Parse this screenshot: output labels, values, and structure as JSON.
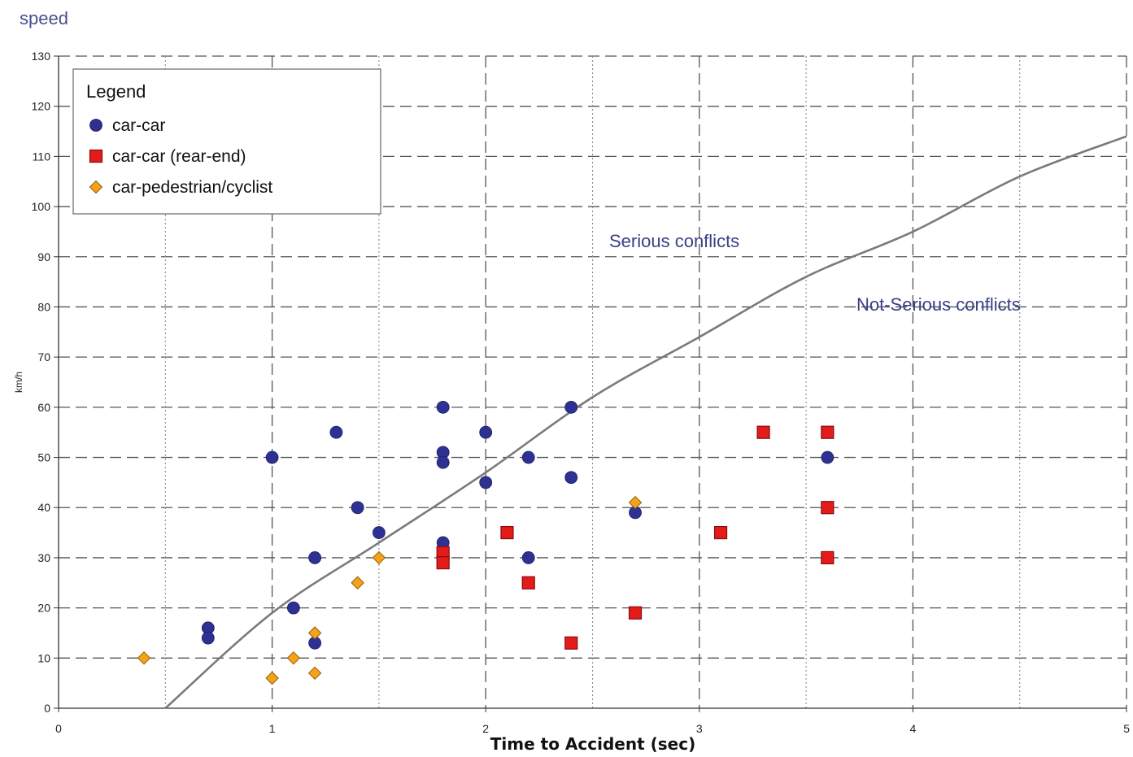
{
  "chart_data": {
    "type": "scatter",
    "title": "speed",
    "xlabel": "Time to Accident (sec)",
    "ylabel": "km/h",
    "xlim": [
      0,
      5
    ],
    "ylim": [
      0,
      130
    ],
    "x_ticks": [
      0,
      1,
      2,
      3,
      4,
      5
    ],
    "y_ticks": [
      0,
      10,
      20,
      30,
      40,
      50,
      60,
      70,
      80,
      90,
      100,
      110,
      120,
      130
    ],
    "grid": true,
    "legend": {
      "title": "Legend",
      "placement": "top-left"
    },
    "annotations": [
      "Serious conflicts",
      "Not-Serious conflicts"
    ],
    "boundary_curve": [
      {
        "x": 0.5,
        "y": 0
      },
      {
        "x": 1.0,
        "y": 19
      },
      {
        "x": 1.5,
        "y": 33
      },
      {
        "x": 2.0,
        "y": 47
      },
      {
        "x": 2.5,
        "y": 62
      },
      {
        "x": 3.0,
        "y": 74
      },
      {
        "x": 3.5,
        "y": 86
      },
      {
        "x": 4.0,
        "y": 95
      },
      {
        "x": 4.5,
        "y": 106
      },
      {
        "x": 5.0,
        "y": 114
      }
    ],
    "series": [
      {
        "name": "car-car",
        "marker": "circle",
        "color": "#2e3192",
        "points": [
          {
            "x": 0.7,
            "y": 16
          },
          {
            "x": 0.7,
            "y": 14
          },
          {
            "x": 1.0,
            "y": 50
          },
          {
            "x": 1.1,
            "y": 20
          },
          {
            "x": 1.2,
            "y": 30
          },
          {
            "x": 1.2,
            "y": 13
          },
          {
            "x": 1.3,
            "y": 55
          },
          {
            "x": 1.4,
            "y": 40
          },
          {
            "x": 1.5,
            "y": 35
          },
          {
            "x": 1.8,
            "y": 60
          },
          {
            "x": 1.8,
            "y": 51
          },
          {
            "x": 1.8,
            "y": 49
          },
          {
            "x": 1.8,
            "y": 33
          },
          {
            "x": 2.0,
            "y": 55
          },
          {
            "x": 2.0,
            "y": 45
          },
          {
            "x": 2.2,
            "y": 50
          },
          {
            "x": 2.2,
            "y": 30
          },
          {
            "x": 2.4,
            "y": 60
          },
          {
            "x": 2.4,
            "y": 46
          },
          {
            "x": 2.7,
            "y": 39
          },
          {
            "x": 3.6,
            "y": 50
          }
        ]
      },
      {
        "name": "car-car (rear-end)",
        "marker": "square",
        "color": "#e31b1b",
        "points": [
          {
            "x": 1.8,
            "y": 31
          },
          {
            "x": 1.8,
            "y": 29
          },
          {
            "x": 2.1,
            "y": 35
          },
          {
            "x": 2.2,
            "y": 25
          },
          {
            "x": 2.4,
            "y": 13
          },
          {
            "x": 2.7,
            "y": 19
          },
          {
            "x": 3.1,
            "y": 35
          },
          {
            "x": 3.3,
            "y": 55
          },
          {
            "x": 3.6,
            "y": 55
          },
          {
            "x": 3.6,
            "y": 40
          },
          {
            "x": 3.6,
            "y": 30
          }
        ]
      },
      {
        "name": "car-pedestrian/cyclist",
        "marker": "diamond",
        "color": "#f3a21b",
        "points": [
          {
            "x": 0.4,
            "y": 10
          },
          {
            "x": 1.0,
            "y": 6
          },
          {
            "x": 1.1,
            "y": 10
          },
          {
            "x": 1.2,
            "y": 15
          },
          {
            "x": 1.2,
            "y": 7
          },
          {
            "x": 1.4,
            "y": 25
          },
          {
            "x": 1.5,
            "y": 30
          },
          {
            "x": 2.7,
            "y": 41
          }
        ]
      }
    ]
  }
}
